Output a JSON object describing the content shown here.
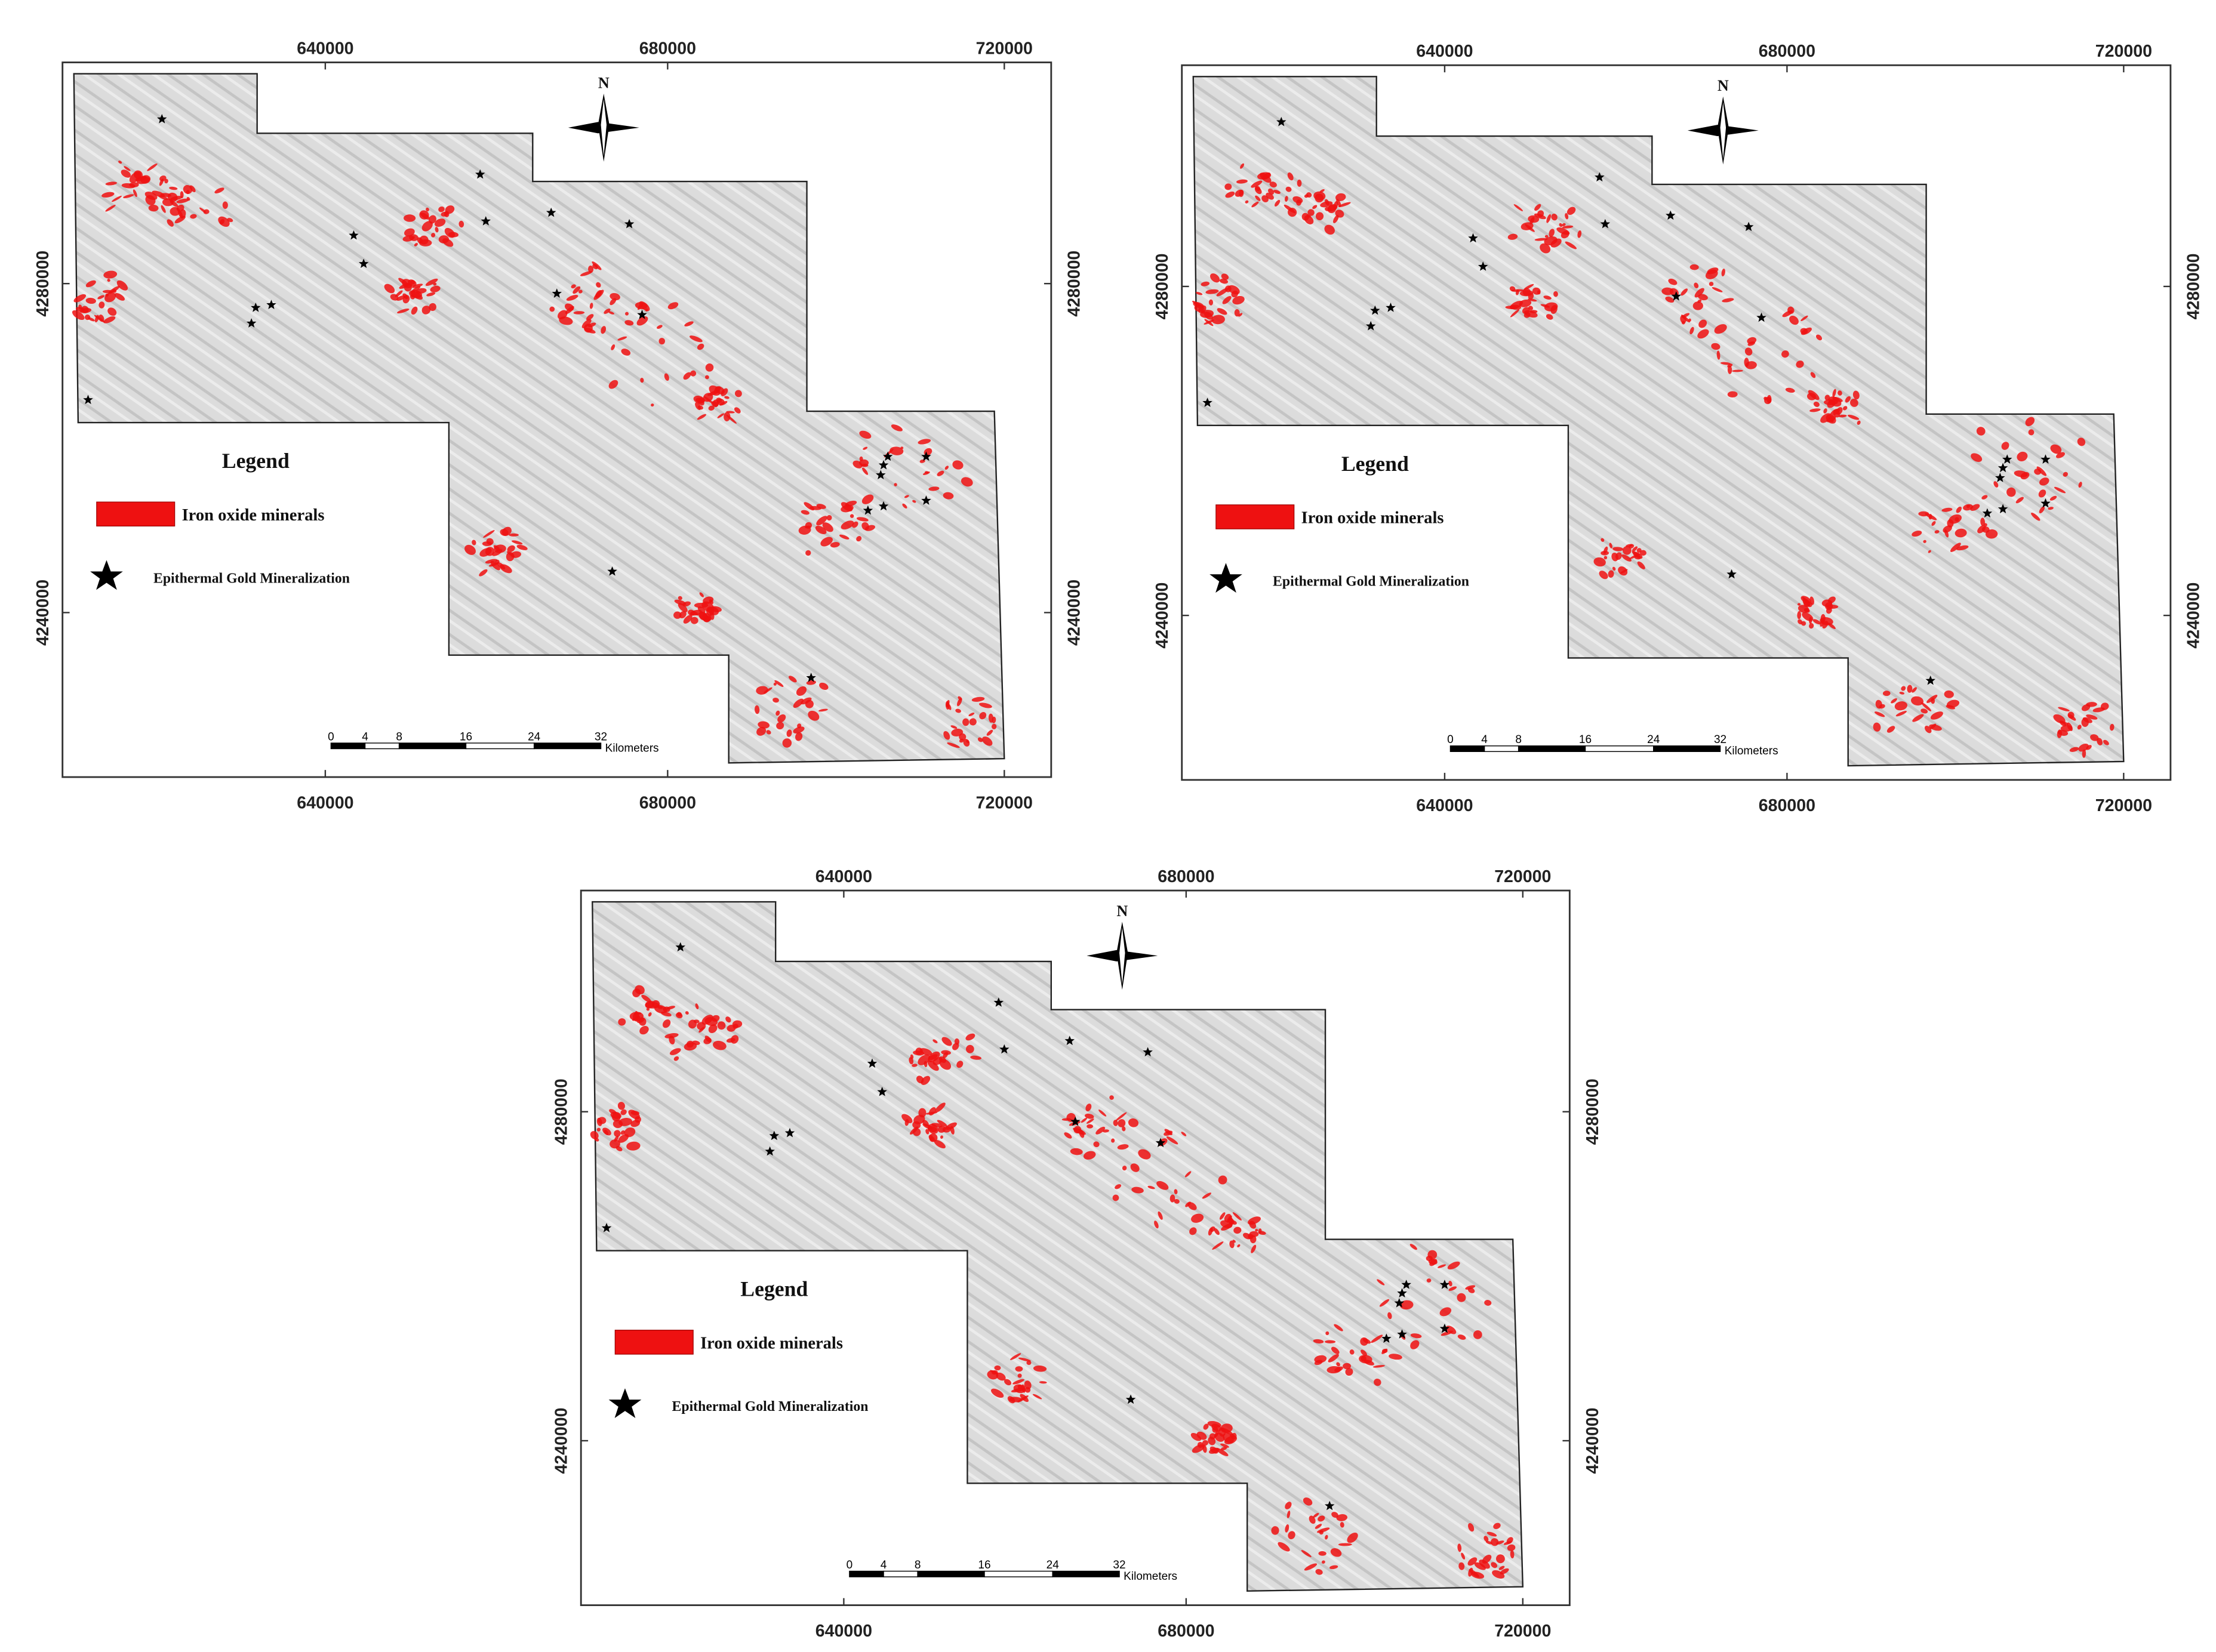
{
  "map": {
    "x_ticks": [
      "640000",
      "680000",
      "720000"
    ],
    "y_ticks": [
      "4280000",
      "4240000"
    ],
    "north": "N",
    "legend": {
      "title": "Legend",
      "items": [
        "Iron oxide minerals",
        "Epithermal Gold Mineralization"
      ]
    },
    "scale_bar": {
      "labels": [
        "0",
        "4",
        "8",
        "16",
        "24",
        "32"
      ],
      "unit": "Kilometers"
    }
  }
}
